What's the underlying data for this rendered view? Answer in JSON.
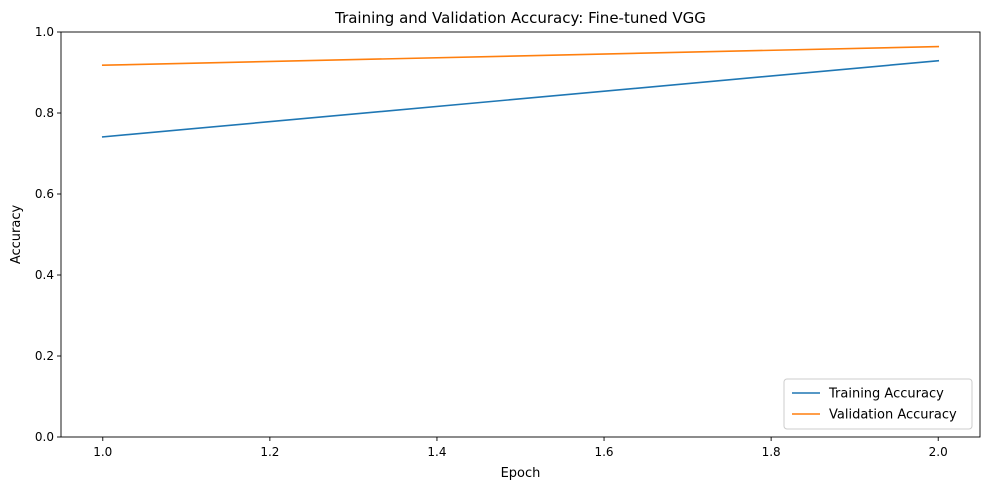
{
  "chart_data": {
    "type": "line",
    "title": "Training and Validation Accuracy: Fine-tuned VGG",
    "xlabel": "Epoch",
    "ylabel": "Accuracy",
    "xlim": [
      0.95,
      2.05
    ],
    "ylim": [
      0.0,
      1.0
    ],
    "xticks": [
      1.0,
      1.2,
      1.4,
      1.6,
      1.8,
      2.0
    ],
    "xtick_labels": [
      "1.0",
      "1.2",
      "1.4",
      "1.6",
      "1.8",
      "2.0"
    ],
    "yticks": [
      0.0,
      0.2,
      0.4,
      0.6,
      0.8,
      1.0
    ],
    "ytick_labels": [
      "0.0",
      "0.2",
      "0.4",
      "0.6",
      "0.8",
      "1.0"
    ],
    "x": [
      1.0,
      2.0
    ],
    "series": [
      {
        "name": "Training Accuracy",
        "values": [
          0.741,
          0.929
        ],
        "color": "#1f77b4"
      },
      {
        "name": "Validation Accuracy",
        "values": [
          0.918,
          0.964
        ],
        "color": "#ff7f0e"
      }
    ],
    "grid": false,
    "legend": "lower-right"
  }
}
